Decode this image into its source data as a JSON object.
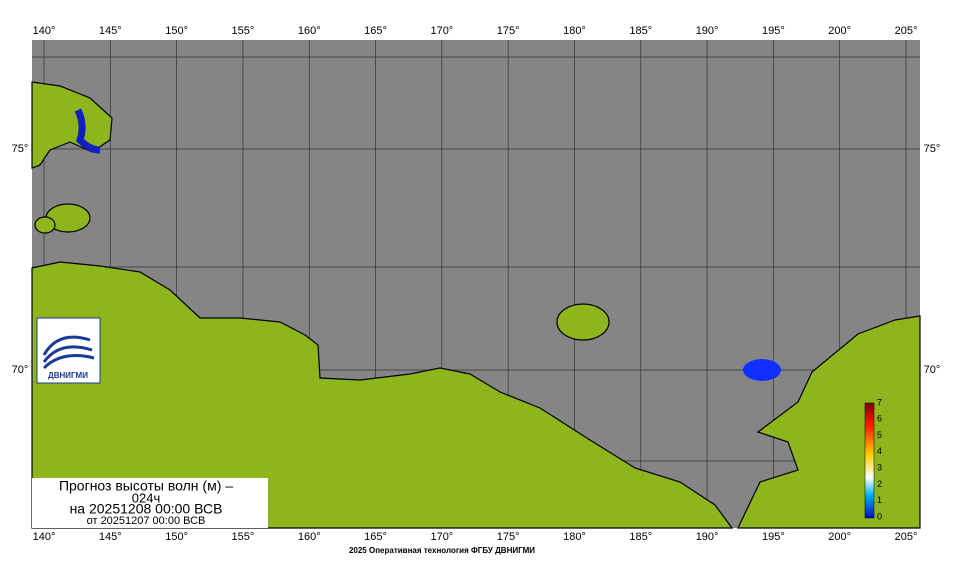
{
  "lon_labels": [
    "140°",
    "145°",
    "150°",
    "155°",
    "160°",
    "165°",
    "170°",
    "175°",
    "180°",
    "185°",
    "190°",
    "195°",
    "200°",
    "205°"
  ],
  "lat_labels": [
    "75°",
    "70°"
  ],
  "legend": {
    "labels": [
      "0",
      "1",
      "2",
      "3",
      "4",
      "5",
      "6",
      "7"
    ]
  },
  "title": {
    "line1": "Прогноз высоты волн (м) –",
    "line2": "024ч",
    "line3": "на 20251208 00:00 ВСВ",
    "line4": "от 20251207 00:00 ВСВ"
  },
  "logo": "ДВНИГМИ",
  "footer": "2025 Оперативная технология ФГБУ ДВНИГМИ"
}
